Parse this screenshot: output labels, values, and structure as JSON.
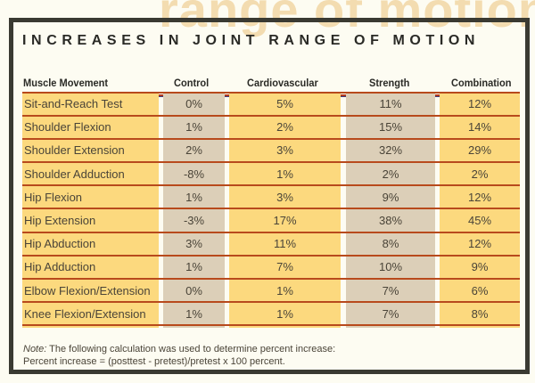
{
  "watermark": "range of motion",
  "title": "INCREASES IN JOINT RANGE OF MOTION",
  "columns": [
    "Muscle Movement",
    "Control",
    "Cardiovascular",
    "Strength",
    "Combination"
  ],
  "rows": [
    [
      "Sit-and-Reach Test",
      "0%",
      "5%",
      "11%",
      "12%"
    ],
    [
      "Shoulder Flexion",
      "1%",
      "2%",
      "15%",
      "14%"
    ],
    [
      "Shoulder Extension",
      "2%",
      "3%",
      "32%",
      "29%"
    ],
    [
      "Shoulder Adduction",
      "-8%",
      "1%",
      "2%",
      "2%"
    ],
    [
      "Hip Flexion",
      "1%",
      "3%",
      "9%",
      "12%"
    ],
    [
      "Hip Extension",
      "-3%",
      "17%",
      "38%",
      "45%"
    ],
    [
      "Hip Abduction",
      "3%",
      "11%",
      "8%",
      "12%"
    ],
    [
      "Hip Adduction",
      "1%",
      "7%",
      "10%",
      "9%"
    ],
    [
      "Elbow Flexion/Extension",
      "0%",
      "1%",
      "7%",
      "6%"
    ],
    [
      "Knee Flexion/Extension",
      "1%",
      "1%",
      "7%",
      "8%"
    ]
  ],
  "note": {
    "label": "Note:",
    "line1": " The following calculation was used to determine percent increase:",
    "line2": "Percent increase = (posttest - pretest)/pretest x 100 percent."
  },
  "colors": {
    "yellow": "#fcd97e",
    "gray": "#dccfb8",
    "rule": "#b84a1c"
  }
}
